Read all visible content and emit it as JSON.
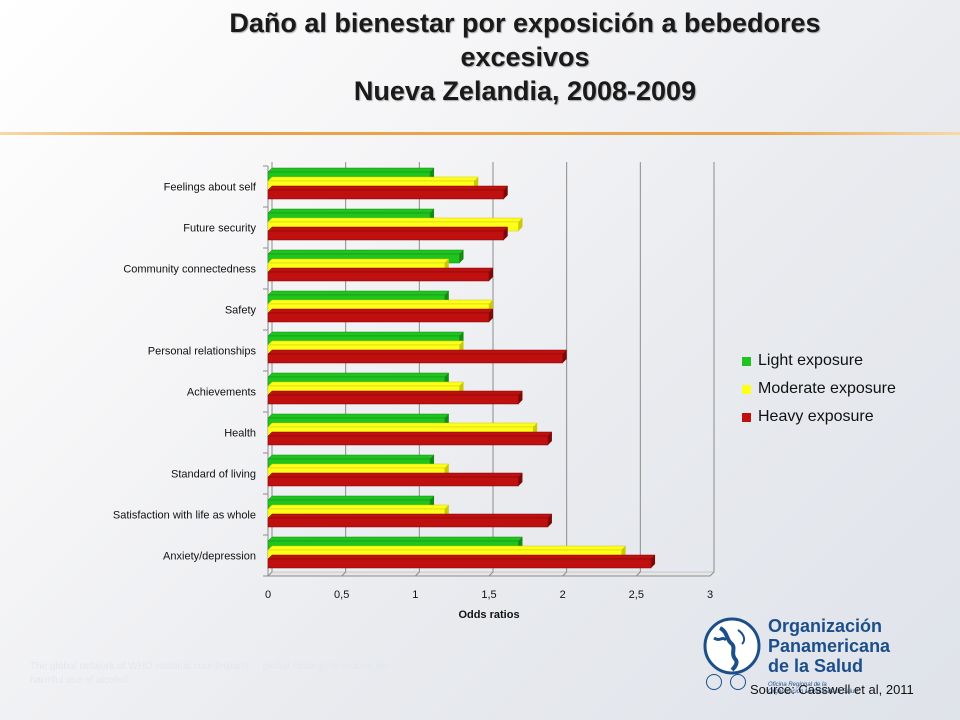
{
  "title": {
    "line1": "Daño al bienestar por exposición a bebedores",
    "line2": "excesivos",
    "line3": "Nueva Zelandia, 2008-2009"
  },
  "colors": {
    "light": "#1fc41f",
    "moderate": "#ffff1a",
    "heavy": "#c00f0f",
    "accent_rule": "#e8a44a",
    "logo_blue": "#1c4f8a"
  },
  "chart_data": {
    "type": "bar",
    "orientation": "horizontal",
    "categories": [
      "Feelings about self",
      "Future security",
      "Community connectedness",
      "Safety",
      "Personal relationships",
      "Achievements",
      "Health",
      "Standard of living",
      "Satisfaction with life as whole",
      "Anxiety/depression"
    ],
    "series": [
      {
        "name": "Light exposure",
        "values": [
          1.1,
          1.1,
          1.3,
          1.2,
          1.3,
          1.2,
          1.2,
          1.1,
          1.1,
          1.7
        ]
      },
      {
        "name": "Moderate exposure",
        "values": [
          1.4,
          1.7,
          1.2,
          1.5,
          1.3,
          1.3,
          1.8,
          1.2,
          1.2,
          2.4
        ]
      },
      {
        "name": "Heavy exposure",
        "values": [
          1.6,
          1.6,
          1.5,
          1.5,
          2.0,
          1.7,
          1.9,
          1.7,
          1.9,
          2.6
        ]
      }
    ],
    "xlabel": "Odds ratios",
    "xlim": [
      0,
      3
    ],
    "xticks": [
      "0",
      "0,5",
      "1",
      "1,5",
      "2",
      "2,5",
      "3"
    ],
    "grid": true,
    "legend_position": "right"
  },
  "logo": {
    "name_lines": [
      "Organización",
      "Panamericana",
      "de la Salud"
    ],
    "sub_lines": [
      "Oficina Regional de la",
      "Organización Mundial de la Salud"
    ]
  },
  "faded_text": "The global network of WHO national counterparts ... global strategy to reduce the harmful use of alcohol",
  "source": "Source: Casswell et al, 2011"
}
